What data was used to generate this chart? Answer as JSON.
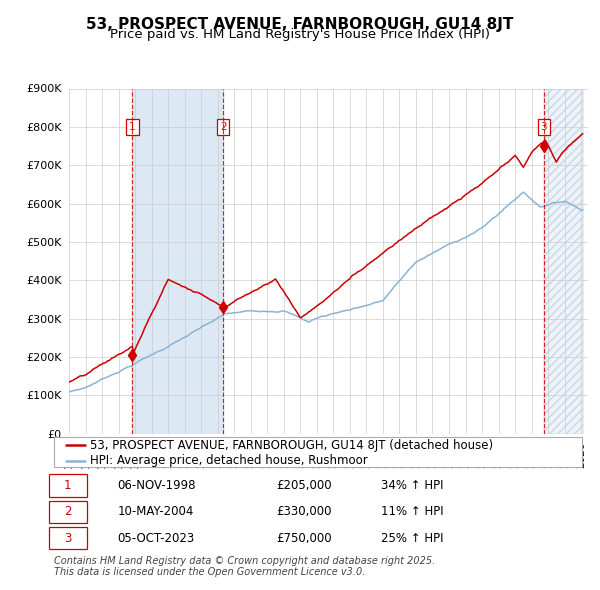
{
  "title": "53, PROSPECT AVENUE, FARNBOROUGH, GU14 8JT",
  "subtitle": "Price paid vs. HM Land Registry's House Price Index (HPI)",
  "legend_line1": "53, PROSPECT AVENUE, FARNBOROUGH, GU14 8JT (detached house)",
  "legend_line2": "HPI: Average price, detached house, Rushmoor",
  "sale_prices": [
    205000,
    330000,
    750000
  ],
  "sale_labels": [
    "1",
    "2",
    "3"
  ],
  "sale_pct": [
    "34% ↑ HPI",
    "11% ↑ HPI",
    "25% ↑ HPI"
  ],
  "sale_date_str": [
    "06-NOV-1998",
    "10-MAY-2004",
    "05-OCT-2023"
  ],
  "ylim": [
    0,
    900000
  ],
  "yticks": [
    0,
    100000,
    200000,
    300000,
    400000,
    500000,
    600000,
    700000,
    800000,
    900000
  ],
  "ytick_labels": [
    "£0",
    "£100K",
    "£200K",
    "£300K",
    "£400K",
    "£500K",
    "£600K",
    "£700K",
    "£800K",
    "£900K"
  ],
  "red_color": "#cc0000",
  "blue_color": "#8ab4d4",
  "shade_color": "#dce9f5",
  "hatch_color": "#dce9f5",
  "footer": "Contains HM Land Registry data © Crown copyright and database right 2025.\nThis data is licensed under the Open Government Licence v3.0.",
  "title_fontsize": 11,
  "subtitle_fontsize": 9.5,
  "axis_fontsize": 8,
  "legend_fontsize": 8.5,
  "table_fontsize": 8.5,
  "footer_fontsize": 7
}
